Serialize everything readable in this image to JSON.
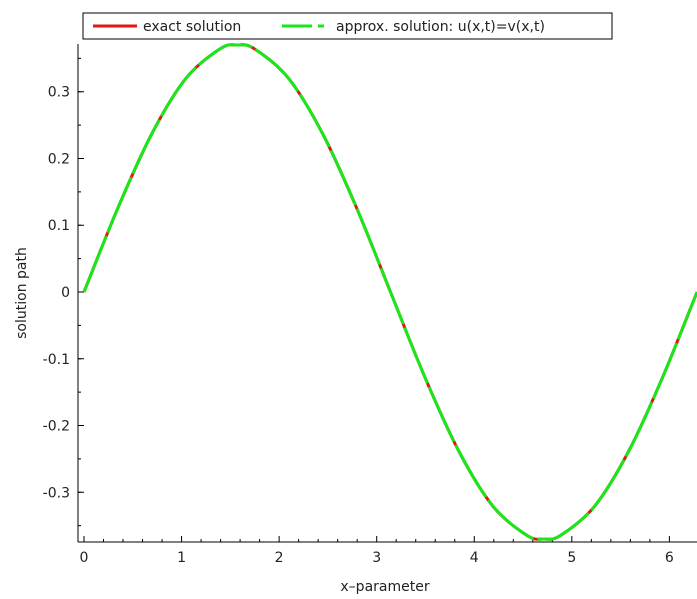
{
  "chart_data": {
    "type": "line",
    "title": "",
    "xlabel": "x–parameter",
    "ylabel": "solution path",
    "xlim": [
      0,
      6.283
    ],
    "ylim": [
      -0.37,
      0.37
    ],
    "x_ticks": [
      0,
      1,
      2,
      3,
      4,
      5,
      6
    ],
    "x_tick_labels": [
      "0",
      "1",
      "2",
      "3",
      "4",
      "5",
      "6"
    ],
    "y_ticks": [
      0.3,
      0.2,
      0.1,
      0,
      -0.1,
      -0.2,
      -0.3
    ],
    "y_tick_labels": [
      "0.3",
      "0.2",
      "0.1",
      "0",
      "-0.1",
      "-0.2",
      "-0.3"
    ],
    "grid": false,
    "legend_position": "top",
    "x": [
      0,
      0.3491,
      0.6981,
      1.0472,
      1.3963,
      1.5708,
      1.7453,
      2.0944,
      2.4435,
      2.7925,
      3.1416,
      3.4907,
      3.8397,
      4.1888,
      4.5379,
      4.7124,
      4.8869,
      5.236,
      5.5851,
      5.9341,
      6.2832
    ],
    "series": [
      {
        "name": "exact solution",
        "color": "#e8141a",
        "style": "solid",
        "values": [
          0,
          0.1265,
          0.2378,
          0.3204,
          0.3644,
          0.37,
          0.3644,
          0.3204,
          0.2378,
          0.1265,
          0,
          -0.1265,
          -0.2378,
          -0.3204,
          -0.3644,
          -0.37,
          -0.3644,
          -0.3204,
          -0.2378,
          -0.1265,
          0
        ]
      },
      {
        "name": "approx. solution: u(x,t)=v(x,t)",
        "color": "#16e81a",
        "style": "dashed",
        "values": [
          0,
          0.1265,
          0.2378,
          0.3204,
          0.3644,
          0.37,
          0.3644,
          0.3204,
          0.2378,
          0.1265,
          0,
          -0.1265,
          -0.2378,
          -0.3204,
          -0.3644,
          -0.37,
          -0.3644,
          -0.3204,
          -0.2378,
          -0.1265,
          0
        ]
      }
    ]
  }
}
